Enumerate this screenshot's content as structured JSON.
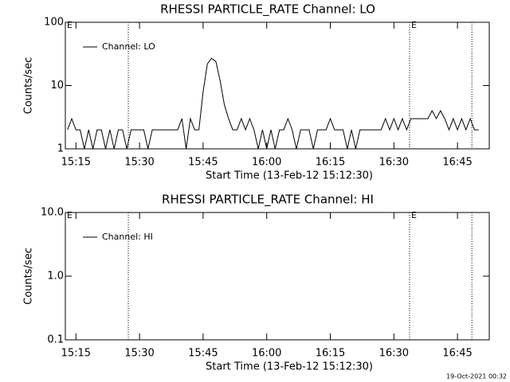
{
  "chart_data": [
    {
      "type": "line",
      "title": "RHESSI PARTICLE_RATE Channel: LO",
      "x_label": "Start Time (13-Feb-12 15:12:30)",
      "y_label": "Counts/sec",
      "log_y": true,
      "ylim": [
        1,
        100
      ],
      "yticks": [
        1,
        10,
        100
      ],
      "xlim": [
        912.5,
        1012.5
      ],
      "xticks": [
        {
          "value": 915,
          "label": "15:15"
        },
        {
          "value": 930,
          "label": "15:30"
        },
        {
          "value": 945,
          "label": "15:45"
        },
        {
          "value": 960,
          "label": "16:00"
        },
        {
          "value": 975,
          "label": "16:15"
        },
        {
          "value": 990,
          "label": "16:30"
        },
        {
          "value": 1005,
          "label": "16:45"
        }
      ],
      "vlines": [
        927.35,
        993.7,
        1008.4
      ],
      "annotations": [
        {
          "x": 912.5,
          "label": "E"
        },
        {
          "x": 993.7,
          "label": "E"
        }
      ],
      "legend": "upper left",
      "x": [
        913,
        914,
        915,
        916,
        917,
        918,
        919,
        920,
        921,
        922,
        923,
        924,
        925,
        926,
        927,
        928,
        929,
        930,
        931,
        932,
        933,
        934,
        935,
        936,
        937,
        938,
        939,
        940,
        941,
        942,
        943,
        944,
        945,
        946,
        947,
        948,
        949,
        950,
        951,
        952,
        953,
        954,
        955,
        956,
        957,
        958,
        959,
        960,
        961,
        962,
        963,
        964,
        965,
        966,
        967,
        968,
        969,
        970,
        971,
        972,
        973,
        974,
        975,
        976,
        977,
        978,
        979,
        980,
        981,
        982,
        983,
        984,
        985,
        986,
        987,
        988,
        989,
        990,
        991,
        992,
        993,
        994,
        995,
        996,
        997,
        998,
        999,
        1000,
        1001,
        1002,
        1003,
        1004,
        1005,
        1006,
        1007,
        1008,
        1009,
        1010
      ],
      "series": [
        {
          "name": "Channel: LO",
          "color": "#000000",
          "values": [
            2,
            3,
            2,
            2,
            1,
            2,
            1,
            2,
            2,
            1,
            2,
            1,
            2,
            2,
            1,
            2,
            2,
            2,
            2,
            1,
            2,
            2,
            2,
            2,
            2,
            2,
            2,
            3,
            1,
            3,
            2,
            2,
            8,
            22,
            27,
            24,
            12,
            5,
            3,
            2,
            2,
            3,
            2,
            3,
            2,
            1,
            2,
            1,
            2,
            1,
            2,
            2,
            3,
            2,
            1,
            2,
            2,
            2,
            1,
            2,
            2,
            2,
            3,
            2,
            2,
            2,
            1,
            2,
            1,
            2,
            2,
            2,
            2,
            2,
            2,
            3,
            2,
            3,
            2,
            3,
            2,
            3,
            3,
            3,
            3,
            3,
            4,
            3,
            4,
            3,
            2,
            3,
            2,
            3,
            2,
            3,
            2,
            2
          ]
        }
      ]
    },
    {
      "type": "line",
      "title": "RHESSI PARTICLE_RATE Channel: HI",
      "x_label": "Start Time (13-Feb-12 15:12:30)",
      "y_label": "Counts/sec",
      "log_y": true,
      "ylim": [
        0.1,
        10
      ],
      "yticks": [
        0.1,
        {
          "value": 1,
          "label": "1.0"
        },
        {
          "value": 10,
          "label": "10.0"
        }
      ],
      "xlim": [
        912.5,
        1012.5
      ],
      "xticks": [
        {
          "value": 915,
          "label": "15:15"
        },
        {
          "value": 930,
          "label": "15:30"
        },
        {
          "value": 945,
          "label": "15:45"
        },
        {
          "value": 960,
          "label": "16:00"
        },
        {
          "value": 975,
          "label": "16:15"
        },
        {
          "value": 990,
          "label": "16:30"
        },
        {
          "value": 1005,
          "label": "16:45"
        }
      ],
      "vlines": [
        927.35,
        993.7,
        1008.4
      ],
      "annotations": [
        {
          "x": 912.5,
          "label": "E"
        },
        {
          "x": 993.7,
          "label": "E"
        }
      ],
      "legend": "upper left",
      "x": [],
      "series": [
        {
          "name": "Channel: HI",
          "color": "#000000",
          "values": []
        }
      ]
    }
  ],
  "footer": "19-Oct-2021 00:32"
}
